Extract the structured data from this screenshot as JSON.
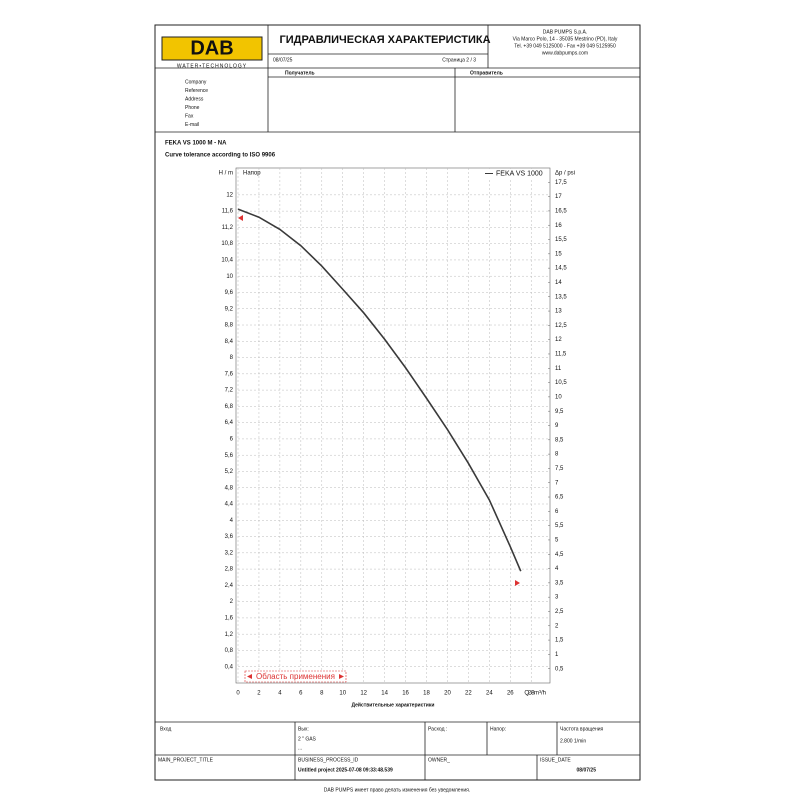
{
  "header": {
    "logo": "DAB",
    "tagline": "WATER•TECHNOLOGY",
    "title": "ГИДРАВЛИЧЕСКАЯ ХАРАКТЕРИСТИКА",
    "date": "08/07/25",
    "page": "Страница 2 / 3",
    "company": [
      "DAB PUMPS S.p.A.",
      "Via Marco Polo, 14 - 35035 Mestrino (PD), Italy",
      "Tel. +39 049 5125000 - Fax +39 049 5125950",
      "www.dabpumps.com"
    ]
  },
  "contact": {
    "recipient": "Получатель",
    "sender": "Отправитель",
    "fields": [
      "Company",
      "Reference",
      "Address",
      "Phone",
      "Fax",
      "E-mail"
    ]
  },
  "chart_data": {
    "type": "line",
    "title": "FEKA VS 1000 M - NA",
    "subtitle": "Curve tolerance according to ISO 9906",
    "y_label": "H / m",
    "y2_label": "Δp / psi",
    "x_label": "Q / m³/h",
    "x_title": "Действительные характеристики",
    "series_label": "Напор",
    "annotation": "Область применения",
    "legend": "upper right",
    "grid": true,
    "x": [
      0,
      2,
      4,
      6,
      8,
      10,
      12,
      14,
      16,
      18,
      20,
      22,
      24,
      26,
      27
    ],
    "series": [
      {
        "name": "FEKA VS 1000",
        "color": "#3a3a3a",
        "values": [
          11.65,
          11.45,
          11.15,
          10.75,
          10.25,
          9.68,
          9.1,
          8.45,
          7.75,
          7.0,
          6.23,
          5.4,
          4.5,
          3.35,
          2.75
        ]
      }
    ],
    "xlim": [
      0,
      29.6
    ],
    "ylim": [
      0,
      12.66
    ],
    "y2lim": [
      0,
      18
    ],
    "xticks": [
      0,
      2,
      4,
      6,
      8,
      10,
      12,
      14,
      16,
      18,
      20,
      22,
      24,
      26,
      28
    ],
    "yticks": [
      {
        "value": 0.4,
        "label": "0,4"
      },
      {
        "value": 0.8,
        "label": "0,8"
      },
      {
        "value": 1.2,
        "label": "1,2"
      },
      {
        "value": 1.6,
        "label": "1,6"
      },
      2,
      {
        "value": 2.4,
        "label": "2,4"
      },
      {
        "value": 2.8,
        "label": "2,8"
      },
      {
        "value": 3.2,
        "label": "3,2"
      },
      {
        "value": 3.6,
        "label": "3,6"
      },
      4,
      {
        "value": 4.4,
        "label": "4,4"
      },
      {
        "value": 4.8,
        "label": "4,8"
      },
      {
        "value": 5.2,
        "label": "5,2"
      },
      {
        "value": 5.6,
        "label": "5,6"
      },
      6,
      {
        "value": 6.4,
        "label": "6,4"
      },
      {
        "value": 6.8,
        "label": "6,8"
      },
      {
        "value": 7.2,
        "label": "7,2"
      },
      {
        "value": 7.6,
        "label": "7,6"
      },
      8,
      {
        "value": 8.4,
        "label": "8,4"
      },
      {
        "value": 8.8,
        "label": "8,8"
      },
      {
        "value": 9.2,
        "label": "9,2"
      },
      {
        "value": 9.6,
        "label": "9,6"
      },
      10,
      {
        "value": 10.4,
        "label": "10,4"
      },
      {
        "value": 10.8,
        "label": "10,8"
      },
      {
        "value": 11.2,
        "label": "11,2"
      },
      {
        "value": 11.6,
        "label": "11,6"
      },
      12
    ],
    "y2ticks": [
      {
        "value": 0.5,
        "label": "0,5"
      },
      1,
      {
        "value": 1.5,
        "label": "1,5"
      },
      2,
      {
        "value": 2.5,
        "label": "2,5"
      },
      3,
      {
        "value": 3.5,
        "label": "3,5"
      },
      4,
      {
        "value": 4.5,
        "label": "4,5"
      },
      5,
      {
        "value": 5.5,
        "label": "5,5"
      },
      6,
      {
        "value": 6.5,
        "label": "6,5"
      },
      7,
      {
        "value": 7.5,
        "label": "7,5"
      },
      8,
      {
        "value": 8.5,
        "label": "8,5"
      },
      9,
      {
        "value": 9.5,
        "label": "9,5"
      },
      10,
      {
        "value": 10.5,
        "label": "10,5"
      },
      11,
      {
        "value": 11.5,
        "label": "11,5"
      },
      12,
      {
        "value": 12.5,
        "label": "12,5"
      },
      13,
      {
        "value": 13.5,
        "label": "13,5"
      },
      14,
      {
        "value": 14.5,
        "label": "14,5"
      },
      15,
      {
        "value": 15.5,
        "label": "15,5"
      },
      16,
      {
        "value": 16.5,
        "label": "16,5"
      },
      17,
      {
        "value": 17.5,
        "label": "17,5"
      }
    ]
  },
  "footer": {
    "inlet": "Вход",
    "outlet": "Вых:",
    "outlet_size": "2 \" GAS",
    "outlet_more": "...",
    "flow": "Расход :",
    "head": "Напор:",
    "speed_label": "Частота вращения",
    "speed": "2.800 1/min",
    "project_title": "MAIN_PROJECT_TITLE",
    "process_id": "BUSINESS_PROCESS_ID",
    "project": "Untitled project 2025-07-08 09:33:48.539",
    "owner": "OWNER_",
    "issue_label": "ISSUE_DATE",
    "issue_date": "08/07/25",
    "notice": "DAB PUMPS имеет право делать изменения без уведомления."
  }
}
